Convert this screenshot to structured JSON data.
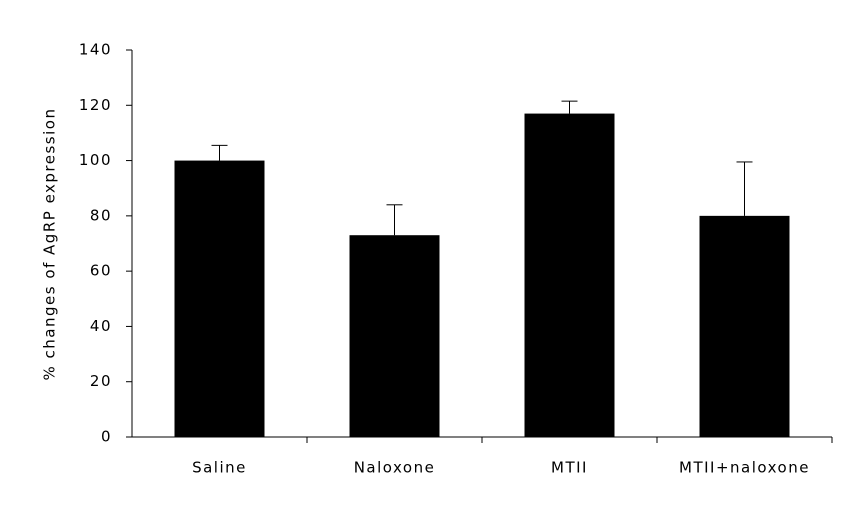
{
  "chart_data": {
    "type": "bar",
    "ylabel": "% changes of AgRP expression",
    "categories": [
      "Saline",
      "Naloxone",
      "MTII",
      "MTII+naloxone"
    ],
    "values": [
      100,
      73,
      117,
      80
    ],
    "errors": [
      5.5,
      11,
      4.5,
      19.5
    ],
    "color": "#000000",
    "ylim": [
      0,
      140
    ],
    "yticks": [
      0,
      20,
      40,
      60,
      80,
      100,
      120,
      140
    ],
    "grid": false
  }
}
